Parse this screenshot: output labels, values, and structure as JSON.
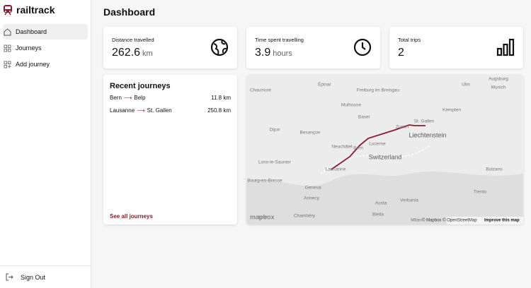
{
  "app": {
    "name": "railtrack"
  },
  "nav": {
    "items": [
      "Dashboard",
      "Journeys",
      "Add journey"
    ],
    "sign_out": "Sign Out"
  },
  "header": {
    "title": "Dashboard"
  },
  "stats": [
    {
      "label": "Distance travelled",
      "value": "262.6",
      "unit": "km"
    },
    {
      "label": "Time spent travelling",
      "value": "3.9",
      "unit": "hours"
    },
    {
      "label": "Total trips",
      "value": "2"
    }
  ],
  "recent": {
    "title": "Recent journeys",
    "link": "See all journeys",
    "journeys": [
      {
        "from": "Bern",
        "to": "Belp",
        "distance": "11.8 km"
      },
      {
        "from": "Lausanne",
        "to": "St. Gallen",
        "distance": "250.8 km"
      }
    ]
  },
  "map": {
    "labels": [
      "Épinal",
      "Freiburg im Breisgau",
      "Ulm",
      "Augsburg",
      "Munich",
      "Chaumont",
      "Mulhouse",
      "Basel",
      "Zurich",
      "St. Gallen",
      "Liechtenstein",
      "Kempten",
      "Dijon",
      "Besançon",
      "Neuchâtel",
      "Bern",
      "Lucerne",
      "Switzerland",
      "Lons-le-Saunier",
      "Lausanne",
      "Bolzano",
      "Bourg-en-Bresse",
      "Geneva",
      "Annecy",
      "Trento",
      "Aosta",
      "Verbania",
      "Lyon",
      "Chambéry",
      "Biella",
      "Milan"
    ],
    "logo": "mapbox",
    "attribution": "© Mapbox © OpenStreetMap",
    "improve": "Improve this map"
  }
}
